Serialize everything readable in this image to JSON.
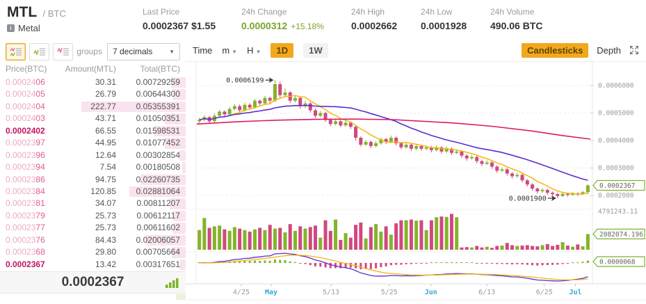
{
  "colors": {
    "up": "#85b32b",
    "down": "#d0487f",
    "ma_short": "#f5b60d",
    "ma_mid": "#5b2cd2",
    "ma_long": "#dc1866",
    "accent_orange": "#f2a81d",
    "link_blue": "#3aa7e0",
    "axis_text": "#9b9b9b",
    "tag_border": "#7cb52b",
    "ask_light": "#eda9c6",
    "ask": "#e05c95",
    "ask_strong": "#c51162",
    "green_text": "#7aa42a"
  },
  "header": {
    "symbol": "MTL",
    "pair": "/ BTC",
    "name": "Metal",
    "stats": [
      {
        "label": "Last Price",
        "value": "0.0002367 $1.55",
        "tone": "dark"
      },
      {
        "label": "24h Change",
        "value": "0.0000312",
        "extra": "+15.18%",
        "tone": "green"
      },
      {
        "label": "24h High",
        "value": "0.0002662",
        "tone": "dark"
      },
      {
        "label": "24h Low",
        "value": "0.0001928",
        "tone": "dark"
      },
      {
        "label": "24h Volume",
        "value": "490.06 BTC",
        "tone": "dark"
      }
    ]
  },
  "orderbook": {
    "groups_label": "groups",
    "decimals_option": "7 decimals",
    "columns": [
      "Price(BTC)",
      "Amount(MTL)",
      "Total(BTC)"
    ],
    "rows": [
      {
        "pre": "0.00024",
        "suf": "06",
        "amount": "30.31",
        "total": "0.00729259",
        "strong": false,
        "depth": 0.14
      },
      {
        "pre": "0.00024",
        "suf": "05",
        "amount": "26.79",
        "total": "0.00644300",
        "strong": false,
        "depth": 0.12
      },
      {
        "pre": "0.00024",
        "suf": "04",
        "amount": "222.77",
        "total": "0.05355391",
        "strong": false,
        "depth": 1.0
      },
      {
        "pre": "0.00024",
        "suf": "03",
        "amount": "43.71",
        "total": "0.01050351",
        "strong": false,
        "depth": 0.2
      },
      {
        "pre": "0.00024",
        "suf": "02",
        "amount": "66.55",
        "total": "0.01598531",
        "strong": true,
        "depth": 0.3
      },
      {
        "pre": "0.00023",
        "suf": "97",
        "amount": "44.95",
        "total": "0.01077452",
        "strong": false,
        "depth": 0.2
      },
      {
        "pre": "0.00023",
        "suf": "96",
        "amount": "12.64",
        "total": "0.00302854",
        "strong": false,
        "depth": 0.06
      },
      {
        "pre": "0.00023",
        "suf": "94",
        "amount": "7.54",
        "total": "0.00180508",
        "strong": false,
        "depth": 0.035
      },
      {
        "pre": "0.00023",
        "suf": "86",
        "amount": "94.75",
        "total": "0.02260735",
        "strong": false,
        "depth": 0.43
      },
      {
        "pre": "0.00023",
        "suf": "84",
        "amount": "120.85",
        "total": "0.02881064",
        "strong": false,
        "depth": 0.54
      },
      {
        "pre": "0.00023",
        "suf": "81",
        "amount": "34.07",
        "total": "0.00811207",
        "strong": false,
        "depth": 0.15
      },
      {
        "pre": "0.00023",
        "suf": "79",
        "amount": "25.73",
        "total": "0.00612117",
        "strong": false,
        "depth": 0.12
      },
      {
        "pre": "0.00023",
        "suf": "77",
        "amount": "25.73",
        "total": "0.00611602",
        "strong": false,
        "depth": 0.12
      },
      {
        "pre": "0.00023",
        "suf": "76",
        "amount": "84.43",
        "total": "0.02006057",
        "strong": false,
        "depth": 0.38
      },
      {
        "pre": "0.00023",
        "suf": "68",
        "amount": "29.80",
        "total": "0.00705664",
        "strong": false,
        "depth": 0.13
      },
      {
        "pre": "0.00023",
        "suf": "67",
        "amount": "13.42",
        "total": "0.00317651",
        "strong": true,
        "depth": 0.06
      }
    ],
    "last_price": "0.0002367"
  },
  "chart": {
    "toolbar": {
      "time_label": "Time",
      "m_label": "m",
      "h_label": "H",
      "d1_label": "1D",
      "w1_label": "1W",
      "candlesticks_label": "Candlesticks",
      "depth_label": "Depth"
    },
    "annotations": {
      "high": "0.0006199",
      "low": "0.0001900"
    },
    "y_axis_labels": [
      "0.0006000",
      "0.0005000",
      "0.0004000",
      "0.0003000",
      "0.0002000"
    ],
    "price_tag": "0.0002367",
    "volume_axis_label": "4791243.11",
    "volume_tag": "2082074.196",
    "macd_tag": "0.0000068",
    "x_ticks": [
      {
        "label": "4/25",
        "accent": false,
        "f": 0.113
      },
      {
        "label": "May",
        "accent": true,
        "f": 0.189
      },
      {
        "label": "5/13",
        "accent": false,
        "f": 0.341
      },
      {
        "label": "5/25",
        "accent": false,
        "f": 0.489
      },
      {
        "label": "Jun",
        "accent": true,
        "f": 0.595
      },
      {
        "label": "6/13",
        "accent": false,
        "f": 0.737
      },
      {
        "label": "6/25",
        "accent": false,
        "f": 0.883
      },
      {
        "label": "Jul",
        "accent": true,
        "f": 0.962
      }
    ]
  },
  "chart_data": {
    "type": "candlestick",
    "title": "MTL/BTC daily candlestick chart with MA overlays, volume and MACD",
    "units": "candles are [open,high,low,close,volume]; prices in 1e-7 BTC, volume in 1000 MTL",
    "y_axis_ticks": [
      0.0002,
      0.0003,
      0.0004,
      0.0005,
      0.0006
    ],
    "x_axis": [
      "4/25",
      "May",
      "5/13",
      "5/25",
      "Jun",
      "6/13",
      "6/25",
      "Jul"
    ],
    "marked_high": 0.0006199,
    "marked_low": 0.00019,
    "last_price": 0.0002367,
    "volume_axis_max": 4791.243,
    "last_volume": 2082.074,
    "indicator_last": 6.8e-06,
    "ma_short_period": 7,
    "ma_mid_period": 25,
    "ma_long_points": [
      [
        0,
        4600
      ],
      [
        0.1,
        4680
      ],
      [
        0.2,
        4740
      ],
      [
        0.3,
        4770
      ],
      [
        0.4,
        4780
      ],
      [
        0.5,
        4760
      ],
      [
        0.55,
        4720
      ],
      [
        0.65,
        4640
      ],
      [
        0.75,
        4520
      ],
      [
        0.85,
        4350
      ],
      [
        0.93,
        4180
      ],
      [
        1,
        4050
      ]
    ],
    "candles": [
      [
        4700,
        4830,
        4620,
        4750,
        2600
      ],
      [
        4750,
        4920,
        4700,
        4850,
        4200
      ],
      [
        4850,
        4900,
        4630,
        4700,
        2900
      ],
      [
        4700,
        4980,
        4660,
        4900,
        3100
      ],
      [
        4900,
        5120,
        4850,
        5050,
        3200
      ],
      [
        5050,
        5100,
        4880,
        4950,
        2700
      ],
      [
        4950,
        5230,
        4900,
        5150,
        2500
      ],
      [
        5150,
        5330,
        5090,
        5250,
        3000
      ],
      [
        5250,
        5310,
        5020,
        5100,
        2800
      ],
      [
        5100,
        5380,
        5050,
        5300,
        2600
      ],
      [
        5300,
        5360,
        5120,
        5200,
        2400
      ],
      [
        5200,
        5520,
        5150,
        5450,
        2700
      ],
      [
        5450,
        5500,
        5260,
        5350,
        2900
      ],
      [
        5350,
        5620,
        5300,
        5550,
        2600
      ],
      [
        5550,
        5600,
        5360,
        5450,
        3300
      ],
      [
        5450,
        6199,
        5400,
        6050,
        2800
      ],
      [
        6050,
        6150,
        5550,
        5650,
        2900
      ],
      [
        5650,
        5900,
        5570,
        5750,
        2300
      ],
      [
        5750,
        5800,
        5360,
        5450,
        3400
      ],
      [
        5450,
        5640,
        5380,
        5550,
        2500
      ],
      [
        5550,
        5600,
        5160,
        5250,
        3100
      ],
      [
        5250,
        5450,
        5180,
        5350,
        2800
      ],
      [
        5350,
        5400,
        5020,
        5100,
        3000
      ],
      [
        5100,
        5160,
        4820,
        4900,
        3200
      ],
      [
        4900,
        5080,
        4840,
        5000,
        1600
      ],
      [
        5000,
        5050,
        4680,
        4750,
        3900
      ],
      [
        4750,
        4800,
        4520,
        4600,
        2500
      ],
      [
        4600,
        4780,
        4550,
        4700,
        4000
      ],
      [
        4700,
        4750,
        4480,
        4550,
        1300
      ],
      [
        4550,
        4720,
        4500,
        4650,
        2200
      ],
      [
        4650,
        4700,
        4420,
        4500,
        1600
      ],
      [
        4500,
        4550,
        4000,
        4100,
        3300
      ],
      [
        4100,
        4150,
        3780,
        3850,
        3600
      ],
      [
        3850,
        4020,
        3800,
        3950,
        1500
      ],
      [
        3950,
        4000,
        3720,
        3800,
        3000
      ],
      [
        3800,
        3980,
        3750,
        3900,
        3400
      ],
      [
        3900,
        4120,
        3850,
        4050,
        2400
      ],
      [
        4050,
        4100,
        3870,
        3950,
        3100
      ],
      [
        3950,
        4180,
        3900,
        4100,
        2000
      ],
      [
        4100,
        4150,
        3820,
        3900,
        3500
      ],
      [
        3900,
        3950,
        3680,
        3750,
        3900
      ],
      [
        3750,
        3920,
        3700,
        3850,
        3900
      ],
      [
        3850,
        3900,
        3620,
        3700,
        4000
      ],
      [
        3700,
        3880,
        3650,
        3800,
        3850
      ],
      [
        3800,
        3850,
        3620,
        3700,
        3900
      ],
      [
        3700,
        3820,
        3650,
        3750,
        2600
      ],
      [
        3750,
        3800,
        3570,
        3650,
        3900
      ],
      [
        3650,
        3830,
        3600,
        3750,
        4300
      ],
      [
        3750,
        3800,
        3520,
        3600,
        4400
      ],
      [
        3600,
        3780,
        3550,
        3700,
        4350
      ],
      [
        3700,
        3750,
        3470,
        3550,
        4750
      ],
      [
        3550,
        3680,
        3500,
        3600,
        4300
      ],
      [
        3600,
        3650,
        3370,
        3450,
        300
      ],
      [
        3450,
        3500,
        3270,
        3350,
        350
      ],
      [
        3350,
        3480,
        3300,
        3400,
        300
      ],
      [
        3400,
        3450,
        3170,
        3250,
        500
      ],
      [
        3250,
        3300,
        3070,
        3150,
        300
      ],
      [
        3150,
        3280,
        3100,
        3200,
        400
      ],
      [
        3200,
        3250,
        2970,
        3050,
        250
      ],
      [
        3050,
        3100,
        2820,
        2900,
        500
      ],
      [
        2900,
        3020,
        2850,
        2950,
        550
      ],
      [
        2950,
        3000,
        2720,
        2800,
        900
      ],
      [
        2800,
        2850,
        2620,
        2700,
        600
      ],
      [
        2700,
        2820,
        2650,
        2750,
        500
      ],
      [
        2750,
        2800,
        2470,
        2550,
        550
      ],
      [
        2550,
        2600,
        2320,
        2400,
        600
      ],
      [
        2400,
        2450,
        2170,
        2250,
        500
      ],
      [
        2250,
        2300,
        2070,
        2150,
        450
      ],
      [
        2150,
        2280,
        2100,
        2200,
        600
      ],
      [
        2200,
        2250,
        2020,
        2100,
        750
      ],
      [
        2100,
        2150,
        1980,
        2050,
        500
      ],
      [
        2050,
        2100,
        1900,
        1980,
        650
      ],
      [
        1980,
        2120,
        1950,
        2060,
        1000
      ],
      [
        2060,
        2100,
        1960,
        2020,
        550
      ],
      [
        2020,
        2130,
        1990,
        2080,
        400
      ],
      [
        2080,
        2110,
        1980,
        2050,
        700
      ],
      [
        2050,
        2170,
        2020,
        2120,
        450
      ],
      [
        2120,
        2400,
        2040,
        2367,
        2082
      ]
    ]
  }
}
